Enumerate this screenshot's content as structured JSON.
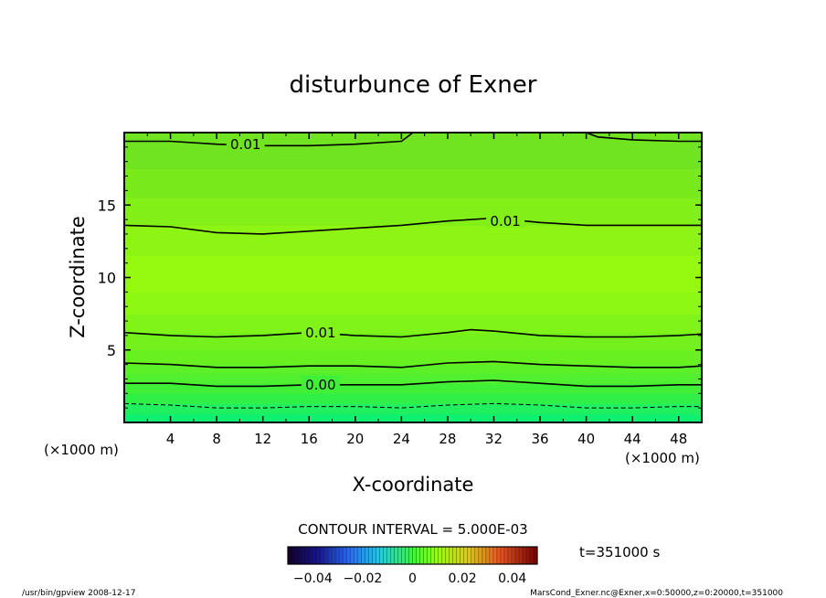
{
  "chart_data": {
    "type": "heatmap",
    "title": "disturbunce of Exner",
    "xlabel": "X-coordinate",
    "ylabel": "Z-coordinate",
    "x_unit": "(×1000 m)",
    "y_unit": "(×1000 m)",
    "xlim": [
      0,
      50
    ],
    "ylim": [
      0,
      20
    ],
    "x_ticks": [
      4,
      8,
      12,
      16,
      20,
      24,
      28,
      32,
      36,
      40,
      44,
      48
    ],
    "y_ticks": [
      5,
      10,
      15
    ],
    "contour_interval_label": "CONTOUR INTERVAL = 5.000E-03",
    "time_label": "t=351000 s",
    "colorbar": {
      "min": -0.05,
      "max": 0.05,
      "tick_values": [
        -0.04,
        -0.02,
        0,
        0.02,
        0.04
      ],
      "tick_labels": [
        "−0.04",
        "−0.02",
        "0",
        "0.02",
        "0.04"
      ]
    },
    "contours": [
      {
        "level": 0.01,
        "label": "0.01",
        "points": [
          [
            0,
            19.4
          ],
          [
            4,
            19.4
          ],
          [
            8,
            19.2
          ],
          [
            12,
            19.1
          ],
          [
            16,
            19.1
          ],
          [
            20,
            19.2
          ],
          [
            24,
            19.4
          ],
          [
            25,
            20
          ],
          [
            40,
            20
          ],
          [
            41,
            19.7
          ],
          [
            44,
            19.5
          ],
          [
            48,
            19.4
          ],
          [
            50,
            19.4
          ]
        ]
      },
      {
        "level": 0.01,
        "label": "0.01",
        "points": [
          [
            0,
            13.6
          ],
          [
            4,
            13.5
          ],
          [
            8,
            13.1
          ],
          [
            12,
            13.0
          ],
          [
            16,
            13.2
          ],
          [
            20,
            13.4
          ],
          [
            24,
            13.6
          ],
          [
            28,
            13.9
          ],
          [
            32,
            14.1
          ],
          [
            36,
            13.8
          ],
          [
            40,
            13.6
          ],
          [
            44,
            13.6
          ],
          [
            48,
            13.6
          ],
          [
            50,
            13.6
          ]
        ]
      },
      {
        "level": 0.01,
        "label": "0.01",
        "points": [
          [
            0,
            6.2
          ],
          [
            4,
            6.0
          ],
          [
            8,
            5.9
          ],
          [
            12,
            6.0
          ],
          [
            16,
            6.2
          ],
          [
            20,
            6.0
          ],
          [
            24,
            5.9
          ],
          [
            28,
            6.2
          ],
          [
            30,
            6.4
          ],
          [
            32,
            6.3
          ],
          [
            36,
            6.0
          ],
          [
            40,
            5.9
          ],
          [
            44,
            5.9
          ],
          [
            48,
            6.0
          ],
          [
            50,
            6.1
          ]
        ]
      },
      {
        "level": 0.005,
        "points": [
          [
            0,
            4.1
          ],
          [
            4,
            4.0
          ],
          [
            8,
            3.8
          ],
          [
            12,
            3.8
          ],
          [
            16,
            3.9
          ],
          [
            20,
            3.9
          ],
          [
            24,
            3.8
          ],
          [
            28,
            4.1
          ],
          [
            32,
            4.2
          ],
          [
            36,
            4.0
          ],
          [
            40,
            3.9
          ],
          [
            44,
            3.8
          ],
          [
            48,
            3.8
          ],
          [
            50,
            3.9
          ]
        ]
      },
      {
        "level": 0.0,
        "label": "0.00",
        "points": [
          [
            0,
            2.7
          ],
          [
            4,
            2.7
          ],
          [
            8,
            2.5
          ],
          [
            12,
            2.5
          ],
          [
            16,
            2.6
          ],
          [
            20,
            2.6
          ],
          [
            24,
            2.6
          ],
          [
            28,
            2.8
          ],
          [
            32,
            2.9
          ],
          [
            36,
            2.7
          ],
          [
            40,
            2.5
          ],
          [
            44,
            2.5
          ],
          [
            48,
            2.6
          ],
          [
            50,
            2.6
          ]
        ]
      },
      {
        "level": -0.005,
        "dashed": true,
        "points": [
          [
            0,
            1.3
          ],
          [
            4,
            1.2
          ],
          [
            8,
            1.0
          ],
          [
            12,
            1.0
          ],
          [
            16,
            1.1
          ],
          [
            20,
            1.1
          ],
          [
            24,
            1.0
          ],
          [
            28,
            1.2
          ],
          [
            32,
            1.3
          ],
          [
            36,
            1.2
          ],
          [
            40,
            1.0
          ],
          [
            44,
            1.0
          ],
          [
            48,
            1.1
          ],
          [
            50,
            1.1
          ]
        ]
      }
    ],
    "contour_label_positions": [
      {
        "label": "0.01",
        "x": 10.5,
        "y": 19.25
      },
      {
        "label": "0.01",
        "x": 33.0,
        "y": 13.95
      },
      {
        "label": "0.01",
        "x": 17.0,
        "y": 6.25
      },
      {
        "label": "0.00",
        "x": 17.0,
        "y": 2.65
      }
    ],
    "fill_bands": [
      {
        "z0": 0,
        "z1": 0.6,
        "color": "#10f070"
      },
      {
        "z0": 0.6,
        "z1": 1.3,
        "color": "#20f060"
      },
      {
        "z0": 1.3,
        "z1": 2.0,
        "color": "#30f048"
      },
      {
        "z0": 2.0,
        "z1": 2.7,
        "color": "#40f038"
      },
      {
        "z0": 2.7,
        "z1": 3.4,
        "color": "#50f030"
      },
      {
        "z0": 3.4,
        "z1": 4.0,
        "color": "#5cf028"
      },
      {
        "z0": 4.0,
        "z1": 5.0,
        "color": "#68f020"
      },
      {
        "z0": 5.0,
        "z1": 6.2,
        "color": "#74f01c"
      },
      {
        "z0": 6.2,
        "z1": 7.5,
        "color": "#80f418"
      },
      {
        "z0": 7.5,
        "z1": 9.0,
        "color": "#8cf814"
      },
      {
        "z0": 9.0,
        "z1": 11.5,
        "color": "#96fa10"
      },
      {
        "z0": 11.5,
        "z1": 13.6,
        "color": "#8ef414"
      },
      {
        "z0": 13.6,
        "z1": 15.5,
        "color": "#82f018"
      },
      {
        "z0": 15.5,
        "z1": 17.5,
        "color": "#78ea1c"
      },
      {
        "z0": 17.5,
        "z1": 20.0,
        "color": "#70e420"
      }
    ]
  },
  "footer": {
    "left": "/usr/bin/gpview   2008-12-17",
    "right": "MarsCond_Exner.nc@Exner,x=0:50000,z=0:20000,t=351000"
  }
}
